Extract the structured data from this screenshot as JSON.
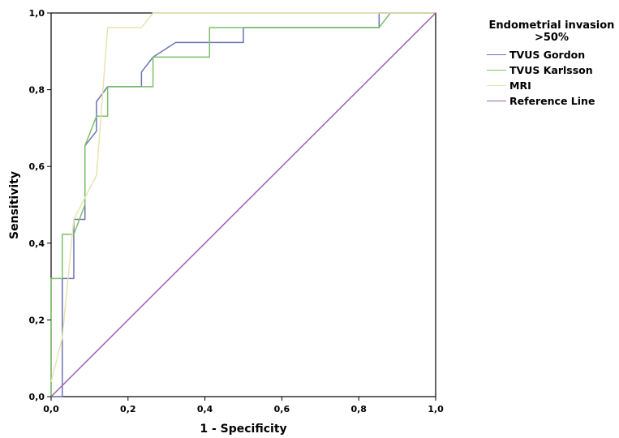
{
  "chart_data": {
    "type": "line",
    "title": "",
    "xlabel": "1 - Specificity",
    "ylabel": "Sensitivity",
    "xlim": [
      0,
      1
    ],
    "ylim": [
      0,
      1
    ],
    "xticks": [
      "0,0",
      "0,2",
      "0,4",
      "0,6",
      "0,8",
      "1,0"
    ],
    "yticks": [
      "0,0",
      "0,2",
      "0,4",
      "0,6",
      "0,8",
      "1,0"
    ],
    "grid": false,
    "legend_position": "right",
    "legend_title": [
      "Endometrial invasion",
      ">50%"
    ],
    "series": [
      {
        "name": "TVUS Gordon",
        "color": "#6a74b8",
        "points": [
          [
            0,
            0
          ],
          [
            0.029,
            0
          ],
          [
            0.029,
            0.308
          ],
          [
            0.059,
            0.308
          ],
          [
            0.059,
            0.462
          ],
          [
            0.088,
            0.462
          ],
          [
            0.088,
            0.654
          ],
          [
            0.118,
            0.692
          ],
          [
            0.118,
            0.769
          ],
          [
            0.147,
            0.808
          ],
          [
            0.235,
            0.808
          ],
          [
            0.235,
            0.846
          ],
          [
            0.265,
            0.885
          ],
          [
            0.324,
            0.923
          ],
          [
            0.412,
            0.923
          ],
          [
            0.5,
            0.923
          ],
          [
            0.5,
            0.962
          ],
          [
            0.853,
            0.962
          ],
          [
            0.853,
            1.0
          ],
          [
            1.0,
            1.0
          ]
        ]
      },
      {
        "name": "TVUS Karlsson",
        "color": "#7cbf6a",
        "points": [
          [
            0,
            0
          ],
          [
            0,
            0.308
          ],
          [
            0.029,
            0.308
          ],
          [
            0.029,
            0.423
          ],
          [
            0.059,
            0.423
          ],
          [
            0.088,
            0.5
          ],
          [
            0.088,
            0.654
          ],
          [
            0.118,
            0.731
          ],
          [
            0.147,
            0.731
          ],
          [
            0.147,
            0.808
          ],
          [
            0.265,
            0.808
          ],
          [
            0.265,
            0.885
          ],
          [
            0.412,
            0.885
          ],
          [
            0.412,
            0.962
          ],
          [
            0.853,
            0.962
          ],
          [
            0.882,
            1.0
          ],
          [
            1.0,
            1.0
          ]
        ]
      },
      {
        "name": "MRI",
        "color": "#e9e3b0",
        "points": [
          [
            0,
            0.038
          ],
          [
            0.029,
            0.154
          ],
          [
            0.059,
            0.462
          ],
          [
            0.118,
            0.577
          ],
          [
            0.147,
            0.962
          ],
          [
            0.235,
            0.962
          ],
          [
            0.265,
            1.0
          ],
          [
            1.0,
            1.0
          ]
        ]
      },
      {
        "name": "Reference Line",
        "color": "#9a60b0",
        "points": [
          [
            0,
            0
          ],
          [
            1,
            1
          ]
        ]
      }
    ]
  }
}
